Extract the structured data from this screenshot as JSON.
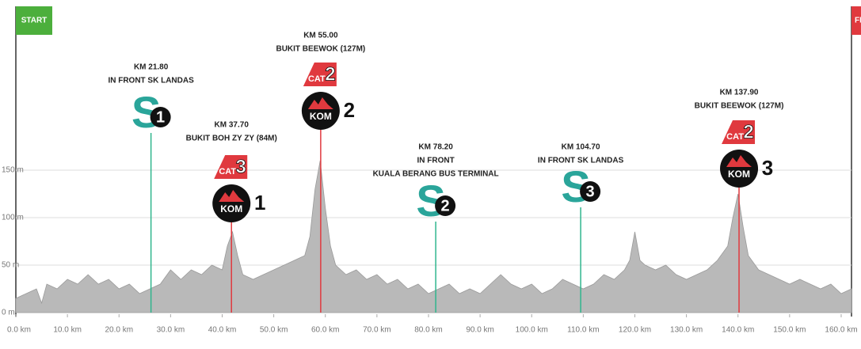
{
  "chart_data": {
    "type": "area",
    "color": "#b9b9b9",
    "x": [
      0,
      2,
      4,
      5,
      6,
      8,
      10,
      12,
      14,
      16,
      18,
      20,
      22,
      24,
      26,
      28,
      30,
      32,
      34,
      36,
      38,
      40,
      41,
      42,
      43,
      44,
      46,
      48,
      50,
      52,
      54,
      56,
      57,
      58,
      59,
      60,
      61,
      62,
      64,
      66,
      68,
      70,
      72,
      74,
      76,
      78,
      80,
      82,
      84,
      86,
      88,
      90,
      92,
      94,
      96,
      98,
      100,
      102,
      104,
      106,
      108,
      110,
      112,
      114,
      116,
      118,
      119,
      120,
      121,
      122,
      124,
      126,
      128,
      130,
      132,
      134,
      136,
      138,
      139,
      140,
      141,
      142,
      144,
      146,
      148,
      150,
      152,
      154,
      156,
      158,
      160,
      162
    ],
    "values": [
      15,
      20,
      25,
      10,
      30,
      25,
      35,
      30,
      40,
      30,
      35,
      25,
      30,
      20,
      25,
      30,
      45,
      35,
      45,
      40,
      50,
      45,
      70,
      85,
      60,
      40,
      35,
      40,
      45,
      50,
      55,
      60,
      80,
      130,
      160,
      110,
      70,
      50,
      40,
      45,
      35,
      40,
      30,
      35,
      25,
      30,
      20,
      25,
      30,
      20,
      25,
      20,
      30,
      40,
      30,
      25,
      30,
      20,
      25,
      35,
      30,
      25,
      30,
      40,
      35,
      45,
      55,
      85,
      55,
      50,
      45,
      50,
      40,
      35,
      40,
      45,
      55,
      70,
      100,
      125,
      90,
      60,
      45,
      40,
      35,
      30,
      35,
      30,
      25,
      30,
      20,
      25
    ],
    "xlim": [
      0,
      162
    ],
    "ylim": [
      0,
      290
    ],
    "xticks": [
      {
        "value": 0,
        "label": "0.0 km"
      },
      {
        "value": 10,
        "label": "10.0 km"
      },
      {
        "value": 20,
        "label": "20.0 km"
      },
      {
        "value": 30,
        "label": "30.0 km"
      },
      {
        "value": 40,
        "label": "40.0 km"
      },
      {
        "value": 50,
        "label": "50.0 km"
      },
      {
        "value": 60,
        "label": "60.0 km"
      },
      {
        "value": 70,
        "label": "70.0 km"
      },
      {
        "value": 80,
        "label": "80.0 km"
      },
      {
        "value": 90,
        "label": "90.0 km"
      },
      {
        "value": 100,
        "label": "100.0 km"
      },
      {
        "value": 110,
        "label": "110.0 km"
      },
      {
        "value": 120,
        "label": "120.0 km"
      },
      {
        "value": 130,
        "label": "130.0 km"
      },
      {
        "value": 140,
        "label": "140.0 km"
      },
      {
        "value": 150,
        "label": "150.0 km"
      },
      {
        "value": 160,
        "label": "160.0 km"
      }
    ],
    "yticks": [
      {
        "value": 0,
        "label": "0 m"
      },
      {
        "value": 50,
        "label": "50 m"
      },
      {
        "value": 100,
        "label": "100 m"
      },
      {
        "value": 150,
        "label": "150 m"
      }
    ],
    "grid": true,
    "start_label": "START",
    "finish_label": "FINISH",
    "markers": [
      {
        "kind": "sprint",
        "x": 26.2,
        "color": "#2fb58d",
        "lines": [
          "KM 21.80",
          "IN FRONT SK LANDAS"
        ],
        "letter": "S",
        "number": "1"
      },
      {
        "kind": "kom",
        "x": 41.8,
        "color": "#e0393e",
        "lines": [
          "KM 37.70",
          "BUKIT BOH ZY ZY (84M)"
        ],
        "cat_label": "CAT",
        "cat": "3",
        "kom_label": "KOM",
        "number": "1"
      },
      {
        "kind": "kom",
        "x": 59.1,
        "color": "#e0393e",
        "lines": [
          "KM 55.00",
          "BUKIT BEEWOK (127M)"
        ],
        "cat_label": "CAT",
        "cat": "2",
        "kom_label": "KOM",
        "number": "2"
      },
      {
        "kind": "sprint",
        "x": 81.4,
        "color": "#2fb58d",
        "lines": [
          "KM 78.20",
          "IN FRONT",
          "KUALA BERANG BUS TERMINAL"
        ],
        "letter": "S",
        "number": "2"
      },
      {
        "kind": "sprint",
        "x": 109.5,
        "color": "#2fb58d",
        "lines": [
          "KM 104.70",
          "IN FRONT SK LANDAS"
        ],
        "letter": "S",
        "number": "3"
      },
      {
        "kind": "kom",
        "x": 140.2,
        "color": "#e0393e",
        "lines": [
          "KM 137.90",
          "BUKIT BEEWOK (127M)"
        ],
        "cat_label": "CAT",
        "cat": "2",
        "kom_label": "KOM",
        "number": "3"
      }
    ]
  }
}
